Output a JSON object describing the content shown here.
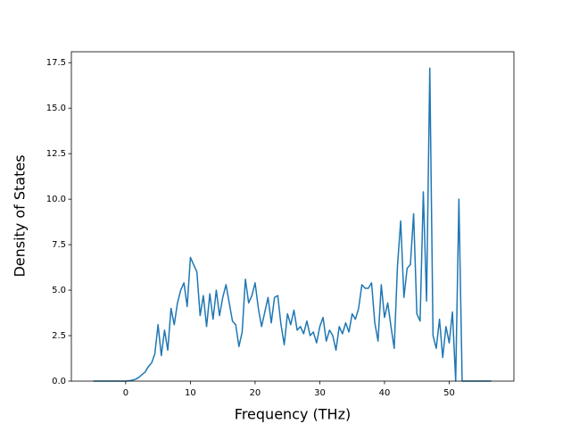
{
  "chart_data": {
    "type": "line",
    "xlabel": "Frequency (THz)",
    "ylabel": "Density of States",
    "x": [
      -5,
      -4.5,
      -4,
      -3.5,
      -3,
      -2.5,
      -2,
      -1.5,
      -1,
      -0.5,
      0,
      0.5,
      1,
      1.5,
      2,
      2.5,
      3,
      3.5,
      4,
      4.5,
      5,
      5.5,
      6,
      6.5,
      7,
      7.5,
      8,
      8.5,
      9,
      9.5,
      10,
      10.5,
      11,
      11.5,
      12,
      12.5,
      13,
      13.5,
      14,
      14.5,
      15,
      15.5,
      16,
      16.5,
      17,
      17.5,
      18,
      18.5,
      19,
      19.5,
      20,
      20.5,
      21,
      21.5,
      22,
      22.5,
      23,
      23.5,
      24,
      24.5,
      25,
      25.5,
      26,
      26.5,
      27,
      27.5,
      28,
      28.5,
      29,
      29.5,
      30,
      30.5,
      31,
      31.5,
      32,
      32.5,
      33,
      33.5,
      34,
      34.5,
      35,
      35.5,
      36,
      36.5,
      37,
      37.5,
      38,
      38.5,
      39,
      39.5,
      40,
      40.5,
      41,
      41.5,
      42,
      42.5,
      43,
      43.5,
      44,
      44.5,
      45,
      45.5,
      46,
      46.5,
      47,
      47.5,
      48,
      48.5,
      49,
      49.5,
      50,
      50.5,
      51,
      51.5,
      52,
      52.5,
      53,
      53.5,
      54,
      54.5,
      55,
      55.5,
      56,
      56.5
    ],
    "values": [
      0,
      0,
      0,
      0,
      0,
      0,
      0,
      0,
      0,
      0,
      0,
      0.02,
      0.05,
      0.1,
      0.2,
      0.35,
      0.5,
      0.8,
      1.0,
      1.5,
      3.1,
      1.4,
      2.8,
      1.7,
      4.0,
      3.1,
      4.3,
      5.0,
      5.4,
      4.1,
      6.8,
      6.4,
      6.0,
      3.6,
      4.7,
      3.0,
      4.8,
      3.4,
      5.0,
      3.6,
      4.6,
      5.3,
      4.3,
      3.3,
      3.1,
      1.9,
      2.7,
      5.6,
      4.3,
      4.7,
      5.4,
      4.0,
      3.0,
      3.8,
      4.6,
      3.2,
      4.6,
      4.7,
      3.1,
      2.0,
      3.7,
      3.1,
      3.9,
      2.8,
      3.0,
      2.6,
      3.3,
      2.5,
      2.7,
      2.1,
      3.0,
      3.5,
      2.2,
      2.8,
      2.5,
      1.7,
      3.0,
      2.6,
      3.2,
      2.7,
      3.7,
      3.4,
      4.0,
      5.3,
      5.1,
      5.1,
      5.4,
      3.2,
      2.2,
      5.3,
      3.5,
      4.3,
      3.0,
      1.8,
      6.3,
      8.8,
      4.6,
      6.2,
      6.4,
      9.2,
      3.7,
      3.3,
      10.4,
      4.4,
      17.2,
      2.5,
      1.8,
      3.4,
      1.3,
      3.0,
      2.1,
      3.8,
      0,
      10.0,
      0,
      0,
      0,
      0,
      0,
      0,
      0,
      0,
      0,
      0
    ],
    "color": "#1f77b4",
    "xlim": [
      -8.4,
      60
    ],
    "xticks": [
      0,
      10,
      20,
      30,
      40,
      50
    ],
    "ylim": [
      0,
      18.1
    ],
    "yticks": [
      {
        "value": 0,
        "label": "0.0"
      },
      {
        "value": 2.5,
        "label": "2.5"
      },
      {
        "value": 5,
        "label": "5.0"
      },
      {
        "value": 7.5,
        "label": "7.5"
      },
      {
        "value": 10,
        "label": "10.0"
      },
      {
        "value": 12.5,
        "label": "12.5"
      },
      {
        "value": 15,
        "label": "15.0"
      },
      {
        "value": 17.5,
        "label": "17.5"
      }
    ]
  }
}
